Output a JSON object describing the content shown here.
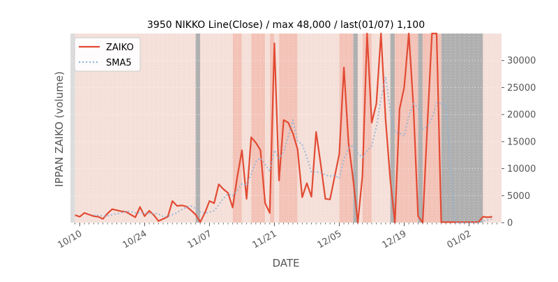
{
  "chart_data": {
    "type": "line",
    "title": "3950 NIKKO Line(Close) / max 48,000 / last(01/07) 1,100",
    "xlabel": "DATE",
    "ylabel": "IPPAN ZAIKO (volume)",
    "ylim": [
      0,
      35000
    ],
    "xlim": [
      "2019-10-08",
      "2020-01-09"
    ],
    "grid": true,
    "legend": "top-left",
    "x_ticks": [
      {
        "date": "2019-10-10",
        "label": "10/10"
      },
      {
        "date": "2019-10-24",
        "label": "10/24"
      },
      {
        "date": "2019-11-07",
        "label": "11/07"
      },
      {
        "date": "2019-11-21",
        "label": "11/21"
      },
      {
        "date": "2019-12-05",
        "label": "12/05"
      },
      {
        "date": "2019-12-19",
        "label": "12/19"
      },
      {
        "date": "2020-01-02",
        "label": "01/02"
      }
    ],
    "y_ticks": [
      {
        "value": 0,
        "label": "0"
      },
      {
        "value": 5000,
        "label": "5000"
      },
      {
        "value": 10000,
        "label": "10000"
      },
      {
        "value": 15000,
        "label": "15000"
      },
      {
        "value": 20000,
        "label": "20000"
      },
      {
        "value": 25000,
        "label": "25000"
      },
      {
        "value": 30000,
        "label": "30000"
      }
    ],
    "series": [
      {
        "name": "ZAIKO",
        "color": "#e24a33",
        "style": "solid",
        "points": [
          [
            "2019-10-09",
            1400
          ],
          [
            "2019-10-10",
            1100
          ],
          [
            "2019-10-11",
            1800
          ],
          [
            "2019-10-12",
            1500
          ],
          [
            "2019-10-13",
            1200
          ],
          [
            "2019-10-14",
            1100
          ],
          [
            "2019-10-15",
            700
          ],
          [
            "2019-10-16",
            1700
          ],
          [
            "2019-10-17",
            2500
          ],
          [
            "2019-10-18",
            2300
          ],
          [
            "2019-10-19",
            2100
          ],
          [
            "2019-10-20",
            2000
          ],
          [
            "2019-10-21",
            1500
          ],
          [
            "2019-10-22",
            1000
          ],
          [
            "2019-10-23",
            2900
          ],
          [
            "2019-10-24",
            1200
          ],
          [
            "2019-10-25",
            2200
          ],
          [
            "2019-10-26",
            1400
          ],
          [
            "2019-10-27",
            300
          ],
          [
            "2019-10-28",
            700
          ],
          [
            "2019-10-29",
            1100
          ],
          [
            "2019-10-30",
            4000
          ],
          [
            "2019-10-31",
            3100
          ],
          [
            "2019-11-01",
            3200
          ],
          [
            "2019-11-02",
            3000
          ],
          [
            "2019-11-03",
            2300
          ],
          [
            "2019-11-04",
            1500
          ],
          [
            "2019-11-05",
            100
          ],
          [
            "2019-11-06",
            1800
          ],
          [
            "2019-11-07",
            4000
          ],
          [
            "2019-11-08",
            3600
          ],
          [
            "2019-11-09",
            7100
          ],
          [
            "2019-11-10",
            6200
          ],
          [
            "2019-11-11",
            5500
          ],
          [
            "2019-11-12",
            2800
          ],
          [
            "2019-11-13",
            8500
          ],
          [
            "2019-11-14",
            13400
          ],
          [
            "2019-11-15",
            4400
          ],
          [
            "2019-11-16",
            15800
          ],
          [
            "2019-11-17",
            14800
          ],
          [
            "2019-11-18",
            13400
          ],
          [
            "2019-11-19",
            3600
          ],
          [
            "2019-11-20",
            1800
          ],
          [
            "2019-11-21",
            33200
          ],
          [
            "2019-11-22",
            7800
          ],
          [
            "2019-11-23",
            19000
          ],
          [
            "2019-11-24",
            18500
          ],
          [
            "2019-11-25",
            16500
          ],
          [
            "2019-11-26",
            13600
          ],
          [
            "2019-11-27",
            4700
          ],
          [
            "2019-11-28",
            7300
          ],
          [
            "2019-11-29",
            4800
          ],
          [
            "2019-11-30",
            16800
          ],
          [
            "2019-12-01",
            10800
          ],
          [
            "2019-12-02",
            4400
          ],
          [
            "2019-12-03",
            4300
          ],
          [
            "2019-12-04",
            8500
          ],
          [
            "2019-12-05",
            12700
          ],
          [
            "2019-12-06",
            28700
          ],
          [
            "2019-12-07",
            14700
          ],
          [
            "2019-12-08",
            8000
          ],
          [
            "2019-12-09",
            0
          ],
          [
            "2019-12-10",
            8700
          ],
          [
            "2019-12-11",
            35000
          ],
          [
            "2019-12-12",
            18500
          ],
          [
            "2019-12-13",
            22000
          ],
          [
            "2019-12-14",
            35000
          ],
          [
            "2019-12-15",
            19000
          ],
          [
            "2019-12-16",
            8000
          ],
          [
            "2019-12-17",
            0
          ],
          [
            "2019-12-18",
            21000
          ],
          [
            "2019-12-19",
            25000
          ],
          [
            "2019-12-20",
            35000
          ],
          [
            "2019-12-21",
            21500
          ],
          [
            "2019-12-22",
            1200
          ],
          [
            "2019-12-23",
            0
          ],
          [
            "2019-12-24",
            18000
          ],
          [
            "2019-12-25",
            35000
          ],
          [
            "2019-12-26",
            35000
          ],
          [
            "2019-12-27",
            100
          ],
          [
            "2019-12-28",
            100
          ],
          [
            "2019-12-29",
            100
          ],
          [
            "2019-12-30",
            100
          ],
          [
            "2019-12-31",
            100
          ],
          [
            "2020-01-01",
            100
          ],
          [
            "2020-01-02",
            100
          ],
          [
            "2020-01-03",
            100
          ],
          [
            "2020-01-04",
            100
          ],
          [
            "2020-01-05",
            1100
          ],
          [
            "2020-01-06",
            1000
          ],
          [
            "2020-01-07",
            1100
          ]
        ]
      },
      {
        "name": "SMA5",
        "color": "#8eb4d8",
        "style": "dotted",
        "points": [
          [
            "2019-10-13",
            1400
          ],
          [
            "2019-10-14",
            1350
          ],
          [
            "2019-10-15",
            1250
          ],
          [
            "2019-10-16",
            1250
          ],
          [
            "2019-10-17",
            1450
          ],
          [
            "2019-10-18",
            1650
          ],
          [
            "2019-10-19",
            1850
          ],
          [
            "2019-10-20",
            2100
          ],
          [
            "2019-10-21",
            2050
          ],
          [
            "2019-10-22",
            1800
          ],
          [
            "2019-10-23",
            1900
          ],
          [
            "2019-10-24",
            1700
          ],
          [
            "2019-10-25",
            1750
          ],
          [
            "2019-10-26",
            1750
          ],
          [
            "2019-10-27",
            1600
          ],
          [
            "2019-10-28",
            1150
          ],
          [
            "2019-10-29",
            1150
          ],
          [
            "2019-10-30",
            1500
          ],
          [
            "2019-10-31",
            1850
          ],
          [
            "2019-11-01",
            2400
          ],
          [
            "2019-11-02",
            2800
          ],
          [
            "2019-11-03",
            3100
          ],
          [
            "2019-11-04",
            2600
          ],
          [
            "2019-11-05",
            2000
          ],
          [
            "2019-11-06",
            1750
          ],
          [
            "2019-11-07",
            1950
          ],
          [
            "2019-11-08",
            2200
          ],
          [
            "2019-11-09",
            3300
          ],
          [
            "2019-11-10",
            4500
          ],
          [
            "2019-11-11",
            5300
          ],
          [
            "2019-11-12",
            5000
          ],
          [
            "2019-11-13",
            6000
          ],
          [
            "2019-11-14",
            7200
          ],
          [
            "2019-11-15",
            6900
          ],
          [
            "2019-11-16",
            9000
          ],
          [
            "2019-11-17",
            11300
          ],
          [
            "2019-11-18",
            12000
          ],
          [
            "2019-11-19",
            10800
          ],
          [
            "2019-11-20",
            9500
          ],
          [
            "2019-11-21",
            13400
          ],
          [
            "2019-11-22",
            11900
          ],
          [
            "2019-11-23",
            13100
          ],
          [
            "2019-11-24",
            16000
          ],
          [
            "2019-11-25",
            19000
          ],
          [
            "2019-11-26",
            15100
          ],
          [
            "2019-11-27",
            14500
          ],
          [
            "2019-11-28",
            12100
          ],
          [
            "2019-11-29",
            9300
          ],
          [
            "2019-11-30",
            9400
          ],
          [
            "2019-12-01",
            9300
          ],
          [
            "2019-12-02",
            8800
          ],
          [
            "2019-12-03",
            8600
          ],
          [
            "2019-12-04",
            8800
          ],
          [
            "2019-12-05",
            8200
          ],
          [
            "2019-12-06",
            11700
          ],
          [
            "2019-12-07",
            13800
          ],
          [
            "2019-12-08",
            14300
          ],
          [
            "2019-12-09",
            12800
          ],
          [
            "2019-12-10",
            12100
          ],
          [
            "2019-12-11",
            13300
          ],
          [
            "2019-12-12",
            14200
          ],
          [
            "2019-12-13",
            17700
          ],
          [
            "2019-12-14",
            22900
          ],
          [
            "2019-12-15",
            27000
          ],
          [
            "2019-12-16",
            20500
          ],
          [
            "2019-12-17",
            16800
          ],
          [
            "2019-12-18",
            16600
          ],
          [
            "2019-12-19",
            16000
          ],
          [
            "2019-12-20",
            19800
          ],
          [
            "2019-12-21",
            22000
          ],
          [
            "2019-12-22",
            21300
          ],
          [
            "2019-12-23",
            17300
          ],
          [
            "2019-12-24",
            17700
          ],
          [
            "2019-12-25",
            19300
          ],
          [
            "2019-12-26",
            22200
          ],
          [
            "2019-12-27",
            22000
          ],
          [
            "2019-12-28",
            21800
          ],
          [
            "2019-12-29",
            10200
          ],
          [
            "2019-12-30",
            0
          ],
          [
            "2019-12-31",
            0
          ],
          [
            "2020-01-01",
            0
          ],
          [
            "2020-01-02",
            0
          ],
          [
            "2020-01-03",
            0
          ],
          [
            "2020-01-04",
            0
          ],
          [
            "2020-01-05",
            300
          ],
          [
            "2020-01-06",
            500
          ],
          [
            "2020-01-07",
            700
          ]
        ]
      }
    ],
    "background_bands": [
      {
        "from": "2019-10-08",
        "to": "2019-10-09",
        "color": "#dcdcdc"
      },
      {
        "from": "2019-10-09",
        "to": "2019-11-04",
        "color": "#f5e0d9"
      },
      {
        "from": "2019-11-04",
        "to": "2019-11-05",
        "color": "#b0b0b0"
      },
      {
        "from": "2019-11-05",
        "to": "2019-11-12",
        "color": "#f5e0d9"
      },
      {
        "from": "2019-11-12",
        "to": "2019-11-14",
        "color": "#f3c3b8"
      },
      {
        "from": "2019-11-14",
        "to": "2019-11-16",
        "color": "#f5e0d9"
      },
      {
        "from": "2019-11-16",
        "to": "2019-11-19",
        "color": "#f3c3b8"
      },
      {
        "from": "2019-11-19",
        "to": "2019-11-20",
        "color": "#f5e0d9"
      },
      {
        "from": "2019-11-20",
        "to": "2019-11-21",
        "color": "#f3c3b8"
      },
      {
        "from": "2019-11-21",
        "to": "2019-11-22",
        "color": "#f5e0d9"
      },
      {
        "from": "2019-11-22",
        "to": "2019-11-26",
        "color": "#f3c3b8"
      },
      {
        "from": "2019-11-26",
        "to": "2019-12-05",
        "color": "#f5e0d9"
      },
      {
        "from": "2019-12-05",
        "to": "2019-12-08",
        "color": "#f3c3b8"
      },
      {
        "from": "2019-12-08",
        "to": "2019-12-09",
        "color": "#b0b0b0"
      },
      {
        "from": "2019-12-09",
        "to": "2019-12-10",
        "color": "#f5e0d9"
      },
      {
        "from": "2019-12-10",
        "to": "2019-12-12",
        "color": "#f3c3b8"
      },
      {
        "from": "2019-12-12",
        "to": "2019-12-16",
        "color": "#f5e0d9"
      },
      {
        "from": "2019-12-16",
        "to": "2019-12-17",
        "color": "#b0b0b0"
      },
      {
        "from": "2019-12-17",
        "to": "2019-12-22",
        "color": "#f3c3b8"
      },
      {
        "from": "2019-12-22",
        "to": "2019-12-23",
        "color": "#b0b0b0"
      },
      {
        "from": "2019-12-23",
        "to": "2019-12-27",
        "color": "#f3c3b8"
      },
      {
        "from": "2019-12-27",
        "to": "2020-01-05",
        "color": "#b0b0b0"
      },
      {
        "from": "2020-01-05",
        "to": "2020-01-09",
        "color": "#f5e0d9"
      }
    ]
  }
}
